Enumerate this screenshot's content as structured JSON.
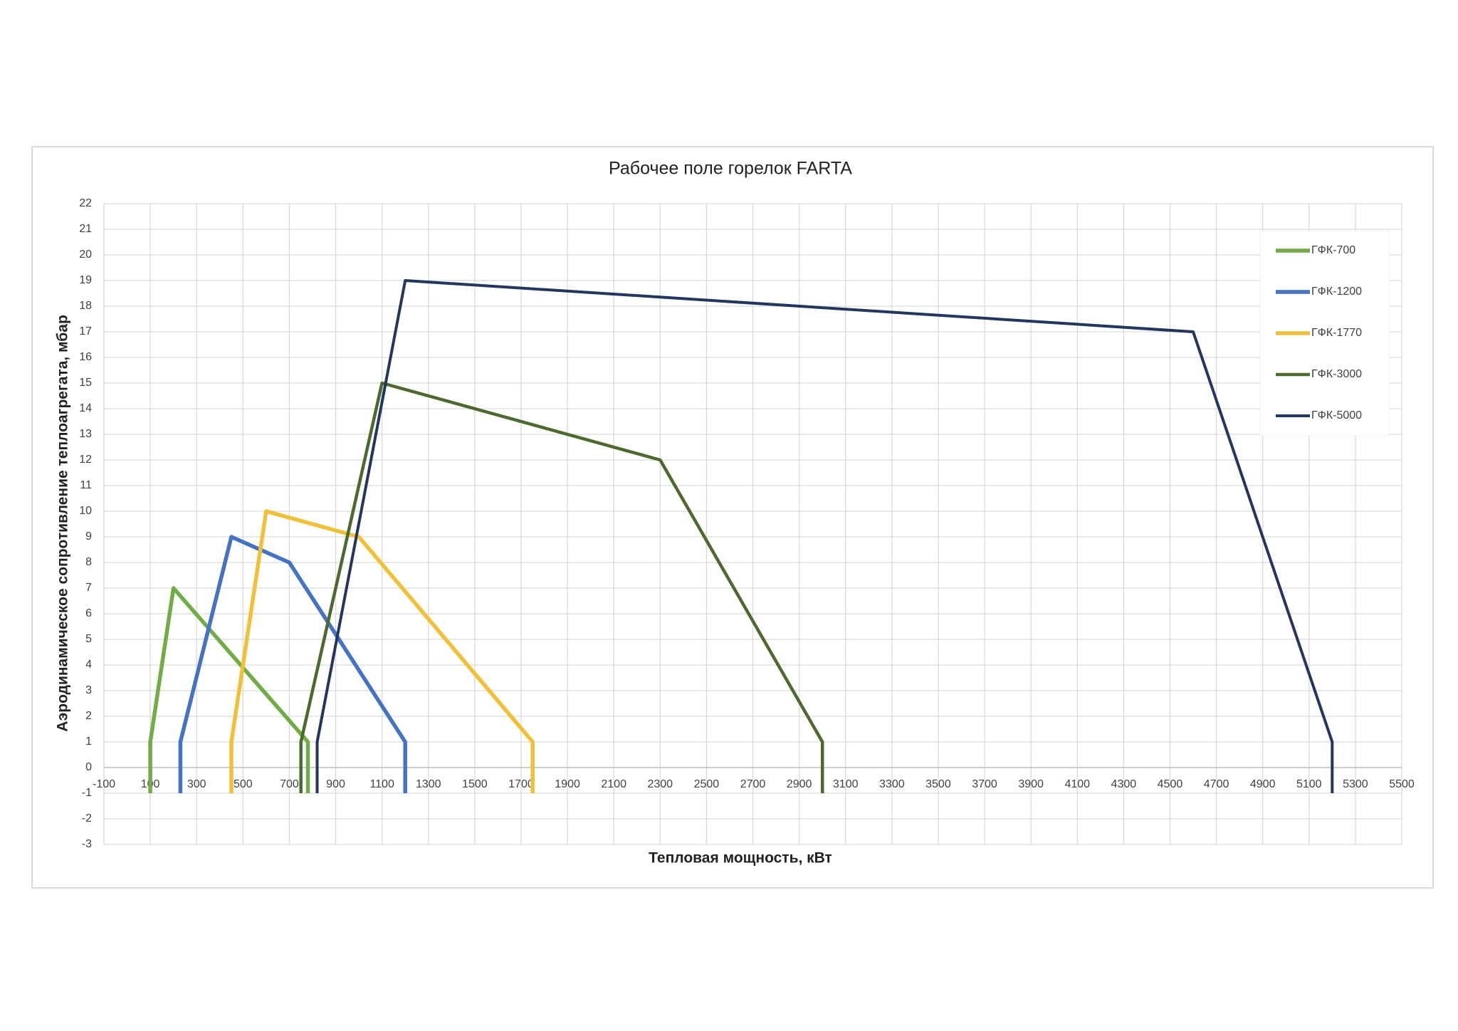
{
  "chart_data": {
    "type": "line",
    "title": "Рабочее поле горелок FARTA",
    "x_label": "Тепловая мощность, кВт",
    "y_label": "Аэродинамическое сопротивление теплоагрегата, мбар",
    "xlim": [
      -100,
      5500
    ],
    "xticks": [
      -100,
      100,
      300,
      500,
      700,
      900,
      1100,
      1300,
      1500,
      1700,
      1900,
      2100,
      2300,
      2500,
      2700,
      2900,
      3100,
      3300,
      3500,
      3700,
      3900,
      4100,
      4300,
      4500,
      4700,
      4900,
      5100,
      5300,
      5500
    ],
    "ylim": [
      -3,
      22
    ],
    "yticks": [
      -3,
      -2,
      -1,
      0,
      1,
      2,
      3,
      4,
      5,
      6,
      7,
      8,
      9,
      10,
      11,
      12,
      13,
      14,
      15,
      16,
      17,
      18,
      19,
      20,
      21,
      22
    ],
    "grid": true,
    "legend": "top-right",
    "series": [
      {
        "name": "ГФК-700",
        "color": "#70ad47",
        "x": [
          100,
          100,
          200,
          780,
          780
        ],
        "values": [
          -1,
          1,
          7,
          1,
          -1
        ]
      },
      {
        "name": "ГФК-1200",
        "color": "#4472c4",
        "x": [
          230,
          230,
          450,
          700,
          1200,
          1200
        ],
        "values": [
          -1,
          1,
          9,
          8,
          1,
          -1
        ]
      },
      {
        "name": "ГФК-1770",
        "color": "#f2c037",
        "x": [
          450,
          450,
          600,
          1000,
          1750,
          1750
        ],
        "values": [
          -1,
          1,
          10,
          9,
          1,
          -1
        ]
      },
      {
        "name": "ГФК-3000",
        "color": "#4d6a2e",
        "x": [
          750,
          750,
          1100,
          2300,
          3000,
          3000
        ],
        "values": [
          -1,
          1,
          15,
          12,
          1,
          -1
        ]
      },
      {
        "name": "ГФК-5000",
        "color": "#22365f",
        "x": [
          820,
          820,
          1200,
          4600,
          5200,
          5200
        ],
        "values": [
          -1,
          1,
          19,
          17,
          1,
          -1
        ]
      }
    ]
  }
}
